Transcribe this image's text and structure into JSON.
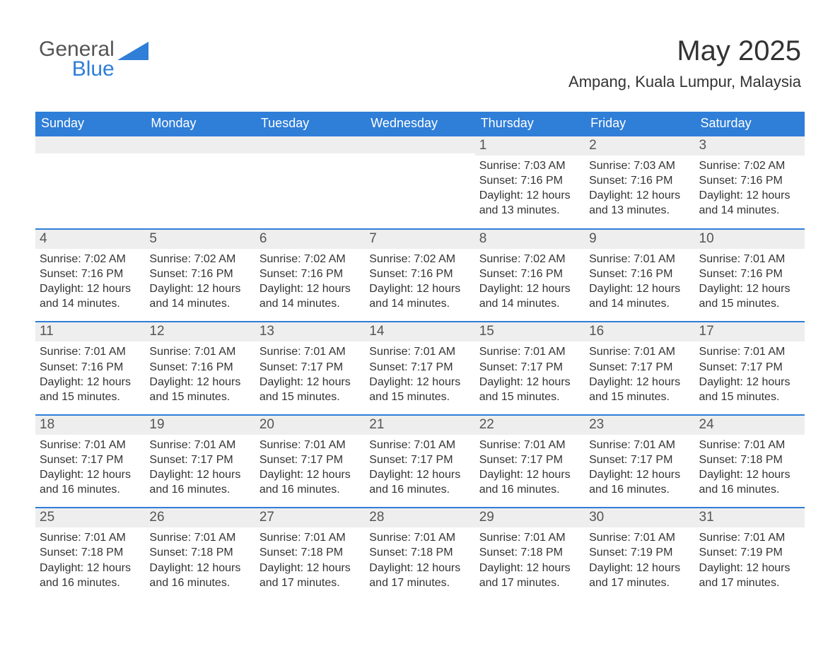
{
  "logo": {
    "word1": "General",
    "word2": "Blue",
    "colors": {
      "text": "#555555",
      "accent": "#2f7ed8"
    }
  },
  "header": {
    "title": "May 2025",
    "location": "Ampang, Kuala Lumpur, Malaysia"
  },
  "colors": {
    "header_bg": "#2f7ed8",
    "header_text": "#ffffff",
    "daynum_bg": "#eeeeee",
    "daynum_text": "#555555",
    "body_text": "#333333",
    "row_border": "#2f7ed8",
    "page_bg": "#ffffff"
  },
  "weekdays": [
    "Sunday",
    "Monday",
    "Tuesday",
    "Wednesday",
    "Thursday",
    "Friday",
    "Saturday"
  ],
  "weeks": [
    [
      {
        "day": "",
        "sunrise": "",
        "sunset": "",
        "daylight_l1": "",
        "daylight_l2": ""
      },
      {
        "day": "",
        "sunrise": "",
        "sunset": "",
        "daylight_l1": "",
        "daylight_l2": ""
      },
      {
        "day": "",
        "sunrise": "",
        "sunset": "",
        "daylight_l1": "",
        "daylight_l2": ""
      },
      {
        "day": "",
        "sunrise": "",
        "sunset": "",
        "daylight_l1": "",
        "daylight_l2": ""
      },
      {
        "day": "1",
        "sunrise": "Sunrise: 7:03 AM",
        "sunset": "Sunset: 7:16 PM",
        "daylight_l1": "Daylight: 12 hours",
        "daylight_l2": "and 13 minutes."
      },
      {
        "day": "2",
        "sunrise": "Sunrise: 7:03 AM",
        "sunset": "Sunset: 7:16 PM",
        "daylight_l1": "Daylight: 12 hours",
        "daylight_l2": "and 13 minutes."
      },
      {
        "day": "3",
        "sunrise": "Sunrise: 7:02 AM",
        "sunset": "Sunset: 7:16 PM",
        "daylight_l1": "Daylight: 12 hours",
        "daylight_l2": "and 14 minutes."
      }
    ],
    [
      {
        "day": "4",
        "sunrise": "Sunrise: 7:02 AM",
        "sunset": "Sunset: 7:16 PM",
        "daylight_l1": "Daylight: 12 hours",
        "daylight_l2": "and 14 minutes."
      },
      {
        "day": "5",
        "sunrise": "Sunrise: 7:02 AM",
        "sunset": "Sunset: 7:16 PM",
        "daylight_l1": "Daylight: 12 hours",
        "daylight_l2": "and 14 minutes."
      },
      {
        "day": "6",
        "sunrise": "Sunrise: 7:02 AM",
        "sunset": "Sunset: 7:16 PM",
        "daylight_l1": "Daylight: 12 hours",
        "daylight_l2": "and 14 minutes."
      },
      {
        "day": "7",
        "sunrise": "Sunrise: 7:02 AM",
        "sunset": "Sunset: 7:16 PM",
        "daylight_l1": "Daylight: 12 hours",
        "daylight_l2": "and 14 minutes."
      },
      {
        "day": "8",
        "sunrise": "Sunrise: 7:02 AM",
        "sunset": "Sunset: 7:16 PM",
        "daylight_l1": "Daylight: 12 hours",
        "daylight_l2": "and 14 minutes."
      },
      {
        "day": "9",
        "sunrise": "Sunrise: 7:01 AM",
        "sunset": "Sunset: 7:16 PM",
        "daylight_l1": "Daylight: 12 hours",
        "daylight_l2": "and 14 minutes."
      },
      {
        "day": "10",
        "sunrise": "Sunrise: 7:01 AM",
        "sunset": "Sunset: 7:16 PM",
        "daylight_l1": "Daylight: 12 hours",
        "daylight_l2": "and 15 minutes."
      }
    ],
    [
      {
        "day": "11",
        "sunrise": "Sunrise: 7:01 AM",
        "sunset": "Sunset: 7:16 PM",
        "daylight_l1": "Daylight: 12 hours",
        "daylight_l2": "and 15 minutes."
      },
      {
        "day": "12",
        "sunrise": "Sunrise: 7:01 AM",
        "sunset": "Sunset: 7:16 PM",
        "daylight_l1": "Daylight: 12 hours",
        "daylight_l2": "and 15 minutes."
      },
      {
        "day": "13",
        "sunrise": "Sunrise: 7:01 AM",
        "sunset": "Sunset: 7:17 PM",
        "daylight_l1": "Daylight: 12 hours",
        "daylight_l2": "and 15 minutes."
      },
      {
        "day": "14",
        "sunrise": "Sunrise: 7:01 AM",
        "sunset": "Sunset: 7:17 PM",
        "daylight_l1": "Daylight: 12 hours",
        "daylight_l2": "and 15 minutes."
      },
      {
        "day": "15",
        "sunrise": "Sunrise: 7:01 AM",
        "sunset": "Sunset: 7:17 PM",
        "daylight_l1": "Daylight: 12 hours",
        "daylight_l2": "and 15 minutes."
      },
      {
        "day": "16",
        "sunrise": "Sunrise: 7:01 AM",
        "sunset": "Sunset: 7:17 PM",
        "daylight_l1": "Daylight: 12 hours",
        "daylight_l2": "and 15 minutes."
      },
      {
        "day": "17",
        "sunrise": "Sunrise: 7:01 AM",
        "sunset": "Sunset: 7:17 PM",
        "daylight_l1": "Daylight: 12 hours",
        "daylight_l2": "and 15 minutes."
      }
    ],
    [
      {
        "day": "18",
        "sunrise": "Sunrise: 7:01 AM",
        "sunset": "Sunset: 7:17 PM",
        "daylight_l1": "Daylight: 12 hours",
        "daylight_l2": "and 16 minutes."
      },
      {
        "day": "19",
        "sunrise": "Sunrise: 7:01 AM",
        "sunset": "Sunset: 7:17 PM",
        "daylight_l1": "Daylight: 12 hours",
        "daylight_l2": "and 16 minutes."
      },
      {
        "day": "20",
        "sunrise": "Sunrise: 7:01 AM",
        "sunset": "Sunset: 7:17 PM",
        "daylight_l1": "Daylight: 12 hours",
        "daylight_l2": "and 16 minutes."
      },
      {
        "day": "21",
        "sunrise": "Sunrise: 7:01 AM",
        "sunset": "Sunset: 7:17 PM",
        "daylight_l1": "Daylight: 12 hours",
        "daylight_l2": "and 16 minutes."
      },
      {
        "day": "22",
        "sunrise": "Sunrise: 7:01 AM",
        "sunset": "Sunset: 7:17 PM",
        "daylight_l1": "Daylight: 12 hours",
        "daylight_l2": "and 16 minutes."
      },
      {
        "day": "23",
        "sunrise": "Sunrise: 7:01 AM",
        "sunset": "Sunset: 7:17 PM",
        "daylight_l1": "Daylight: 12 hours",
        "daylight_l2": "and 16 minutes."
      },
      {
        "day": "24",
        "sunrise": "Sunrise: 7:01 AM",
        "sunset": "Sunset: 7:18 PM",
        "daylight_l1": "Daylight: 12 hours",
        "daylight_l2": "and 16 minutes."
      }
    ],
    [
      {
        "day": "25",
        "sunrise": "Sunrise: 7:01 AM",
        "sunset": "Sunset: 7:18 PM",
        "daylight_l1": "Daylight: 12 hours",
        "daylight_l2": "and 16 minutes."
      },
      {
        "day": "26",
        "sunrise": "Sunrise: 7:01 AM",
        "sunset": "Sunset: 7:18 PM",
        "daylight_l1": "Daylight: 12 hours",
        "daylight_l2": "and 16 minutes."
      },
      {
        "day": "27",
        "sunrise": "Sunrise: 7:01 AM",
        "sunset": "Sunset: 7:18 PM",
        "daylight_l1": "Daylight: 12 hours",
        "daylight_l2": "and 17 minutes."
      },
      {
        "day": "28",
        "sunrise": "Sunrise: 7:01 AM",
        "sunset": "Sunset: 7:18 PM",
        "daylight_l1": "Daylight: 12 hours",
        "daylight_l2": "and 17 minutes."
      },
      {
        "day": "29",
        "sunrise": "Sunrise: 7:01 AM",
        "sunset": "Sunset: 7:18 PM",
        "daylight_l1": "Daylight: 12 hours",
        "daylight_l2": "and 17 minutes."
      },
      {
        "day": "30",
        "sunrise": "Sunrise: 7:01 AM",
        "sunset": "Sunset: 7:19 PM",
        "daylight_l1": "Daylight: 12 hours",
        "daylight_l2": "and 17 minutes."
      },
      {
        "day": "31",
        "sunrise": "Sunrise: 7:01 AM",
        "sunset": "Sunset: 7:19 PM",
        "daylight_l1": "Daylight: 12 hours",
        "daylight_l2": "and 17 minutes."
      }
    ]
  ]
}
